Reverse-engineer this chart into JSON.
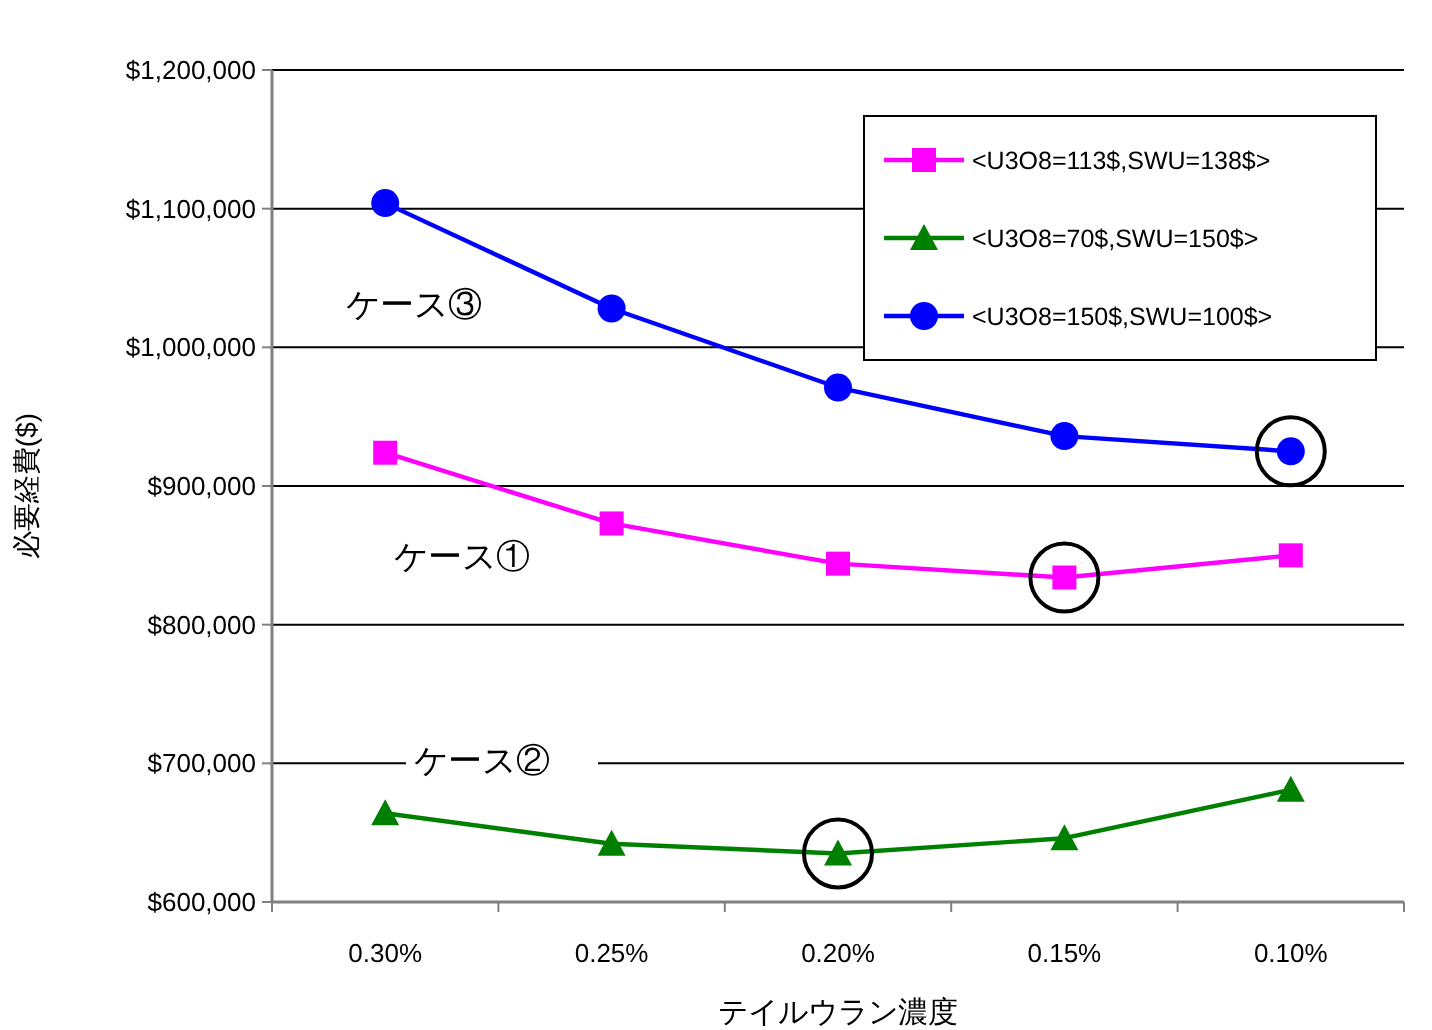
{
  "chart_data": {
    "type": "line",
    "xlabel": "テイルウラン濃度",
    "ylabel": "必要経費($)",
    "categories": [
      "0.30%",
      "0.25%",
      "0.20%",
      "0.15%",
      "0.10%"
    ],
    "ylim": [
      600000,
      1200000
    ],
    "yticks": [
      {
        "value": 600000,
        "label": "$600,000"
      },
      {
        "value": 700000,
        "label": "$700,000"
      },
      {
        "value": 800000,
        "label": "$800,000"
      },
      {
        "value": 900000,
        "label": "$900,000"
      },
      {
        "value": 1000000,
        "label": "$1,000,000"
      },
      {
        "value": 1100000,
        "label": "$1,100,000"
      },
      {
        "value": 1200000,
        "label": "$1,200,000"
      }
    ],
    "grid": "y",
    "legend": "top right",
    "series": [
      {
        "name": "<U3O8=113$,SWU=138$>",
        "color": "#ff00ff",
        "marker": "square",
        "values": [
          924000,
          873000,
          844000,
          834000,
          850000
        ]
      },
      {
        "name": "<U3O8=70$,SWU=150$>",
        "color": "#008000",
        "marker": "triangle",
        "values": [
          664000,
          642000,
          635000,
          646000,
          681000
        ]
      },
      {
        "name": "<U3O8=150$,SWU=100$>",
        "color": "#0000ff",
        "marker": "circle",
        "values": [
          1104000,
          1028000,
          971000,
          936000,
          925000
        ]
      },
      {
        "type": "scatter",
        "color": "#000000",
        "marker": "circle",
        "x": [
          "0.20%",
          "0.15%",
          "0.10%"
        ],
        "values": [
          635000,
          834000,
          925000
        ]
      }
    ],
    "annotations": [
      "ケース③",
      "ケース①",
      "ケース②"
    ]
  }
}
